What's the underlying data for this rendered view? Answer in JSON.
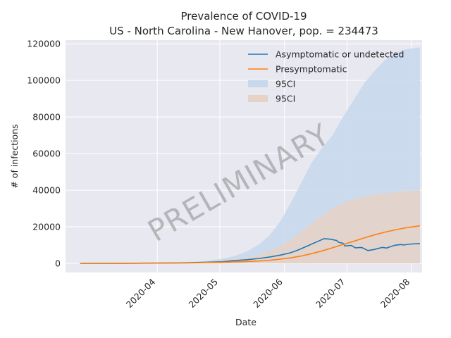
{
  "chart_data": {
    "type": "area",
    "title_line1": "Prevalence of COVID-19",
    "title_line2": "US - North Carolina - New Hanover, pop. = 234473",
    "xlabel": "Date",
    "ylabel": "# of infections",
    "x_ticks": [
      "2020-04",
      "2020-05",
      "2020-06",
      "2020-07",
      "2020-08"
    ],
    "x_tick_days": [
      31,
      61,
      92,
      122,
      153
    ],
    "x_range_days": [
      -13,
      158
    ],
    "ylim": [
      -5000,
      122000
    ],
    "y_ticks": [
      0,
      20000,
      40000,
      60000,
      80000,
      100000,
      120000
    ],
    "y_tick_labels": [
      "0",
      "20000",
      "40000",
      "60000",
      "80000",
      "100000",
      "120000"
    ],
    "grid": true,
    "legend_position": "top-right",
    "watermark": "PRELIMINARY",
    "colors": {
      "asymptomatic": "#1f77b4",
      "presymptomatic": "#ff7f0e",
      "ci_asymptomatic": "#c6d8ec",
      "ci_presymptomatic": "#e6d2c7",
      "plot_bg": "#e8e8f1",
      "grid": "#ffffff"
    },
    "legend": [
      {
        "label": "Asymptomatic or undetected",
        "kind": "line",
        "color_key": "asymptomatic"
      },
      {
        "label": "Presymptomatic",
        "kind": "line",
        "color_key": "presymptomatic"
      },
      {
        "label": "95CI",
        "kind": "patch",
        "color_key": "ci_asymptomatic"
      },
      {
        "label": "95CI",
        "kind": "patch",
        "color_key": "ci_presymptomatic"
      }
    ],
    "series": [
      {
        "name": "Asymptomatic or undetected",
        "color_key": "asymptomatic",
        "x": [
          -6,
          5,
          15,
          25,
          35,
          45,
          55,
          62,
          68,
          74,
          80,
          85,
          90,
          95,
          99,
          104,
          108,
          111,
          114,
          117,
          118,
          120,
          121,
          124,
          126,
          129,
          132,
          135,
          137,
          139,
          141,
          142,
          145,
          148,
          149,
          151,
          153,
          157
        ],
        "y": [
          0,
          0,
          50,
          100,
          200,
          300,
          600,
          900,
          1500,
          2000,
          2700,
          3500,
          4500,
          5800,
          7500,
          10000,
          12000,
          13500,
          13200,
          12500,
          11500,
          11000,
          9500,
          9800,
          8500,
          8700,
          7000,
          7600,
          8200,
          8700,
          8400,
          8800,
          9900,
          10300,
          10000,
          10400,
          10600,
          10800
        ]
      },
      {
        "name": "Presymptomatic",
        "color_key": "presymptomatic",
        "x": [
          -6,
          5,
          15,
          25,
          35,
          45,
          55,
          62,
          68,
          74,
          80,
          85,
          90,
          95,
          100,
          105,
          110,
          115,
          120,
          125,
          130,
          135,
          140,
          145,
          150,
          157
        ],
        "y": [
          0,
          0,
          30,
          80,
          150,
          250,
          450,
          600,
          800,
          1000,
          1300,
          1700,
          2300,
          3000,
          4000,
          5300,
          6800,
          8500,
          10300,
          12000,
          13800,
          15500,
          17000,
          18300,
          19400,
          20500
        ]
      },
      {
        "name": "95CI",
        "kind": "band",
        "color_key": "ci_asymptomatic",
        "x": [
          -6,
          5,
          15,
          25,
          35,
          45,
          55,
          62,
          68,
          74,
          80,
          85,
          90,
          95,
          100,
          105,
          110,
          115,
          120,
          125,
          130,
          135,
          140,
          145,
          150,
          153,
          157
        ],
        "upper": [
          0,
          0,
          100,
          200,
          400,
          700,
          1400,
          2500,
          4000,
          6500,
          10500,
          15500,
          23000,
          33000,
          44000,
          55000,
          63000,
          70000,
          80000,
          89000,
          98000,
          105000,
          111000,
          115000,
          117000,
          117500,
          118000
        ],
        "lower": [
          0,
          0,
          0,
          0,
          0,
          0,
          0,
          0,
          0,
          0,
          0,
          0,
          0,
          0,
          0,
          0,
          0,
          0,
          0,
          0,
          0,
          0,
          0,
          0,
          0,
          0,
          0
        ]
      },
      {
        "name": "95CI",
        "kind": "band",
        "color_key": "ci_presymptomatic",
        "x": [
          -6,
          5,
          15,
          25,
          35,
          45,
          55,
          62,
          68,
          74,
          80,
          85,
          90,
          95,
          100,
          105,
          110,
          115,
          120,
          125,
          130,
          135,
          140,
          145,
          150,
          157
        ],
        "upper": [
          0,
          0,
          60,
          150,
          300,
          500,
          900,
          1500,
          2300,
          3300,
          4800,
          6800,
          9500,
          13000,
          17500,
          22000,
          26000,
          30000,
          33000,
          35000,
          36500,
          37500,
          38300,
          38900,
          39500,
          40000
        ],
        "lower": [
          0,
          0,
          0,
          0,
          0,
          0,
          0,
          0,
          0,
          0,
          0,
          0,
          0,
          0,
          0,
          0,
          0,
          0,
          0,
          0,
          0,
          0,
          0,
          0,
          0,
          0
        ]
      }
    ]
  }
}
